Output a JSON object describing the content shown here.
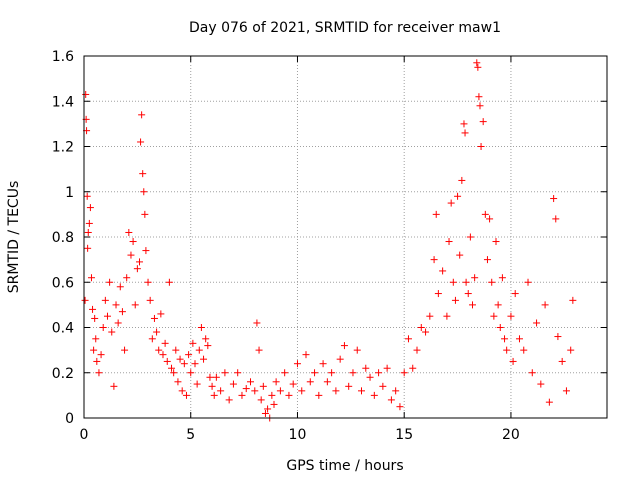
{
  "chart_data": {
    "type": "scatter",
    "title": "Day 076 of 2021, SRMTID for receiver maw1",
    "xlabel": "GPS time / hours",
    "ylabel": "SRMTID / TECUs",
    "xlim": [
      0,
      24.5
    ],
    "ylim": [
      0,
      1.6
    ],
    "grid": true,
    "marker": "+",
    "marker_color": "#ff0000",
    "x_ticks": [
      0,
      5,
      10,
      15,
      20
    ],
    "x_tick_labels": [
      "0",
      "5",
      "10",
      "15",
      "20"
    ],
    "y_ticks": [
      0,
      0.2,
      0.4,
      0.6,
      0.8,
      1.0,
      1.2,
      1.4,
      1.6
    ],
    "y_tick_labels": [
      "0",
      "0.2",
      "0.4",
      "0.6",
      "0.8",
      "1",
      "1.2",
      "1.4",
      "1.6"
    ],
    "series": [
      {
        "name": "SRMTID",
        "points": [
          [
            0.05,
            0.52
          ],
          [
            0.08,
            1.43
          ],
          [
            0.1,
            1.32
          ],
          [
            0.12,
            1.27
          ],
          [
            0.15,
            0.98
          ],
          [
            0.17,
            0.75
          ],
          [
            0.2,
            0.82
          ],
          [
            0.25,
            0.86
          ],
          [
            0.3,
            0.93
          ],
          [
            0.35,
            0.62
          ],
          [
            0.4,
            0.48
          ],
          [
            0.45,
            0.3
          ],
          [
            0.5,
            0.44
          ],
          [
            0.55,
            0.35
          ],
          [
            0.6,
            0.25
          ],
          [
            0.7,
            0.2
          ],
          [
            0.8,
            0.28
          ],
          [
            0.9,
            0.4
          ],
          [
            1.0,
            0.52
          ],
          [
            1.1,
            0.45
          ],
          [
            1.2,
            0.6
          ],
          [
            1.3,
            0.38
          ],
          [
            1.4,
            0.14
          ],
          [
            1.5,
            0.5
          ],
          [
            1.6,
            0.42
          ],
          [
            1.7,
            0.58
          ],
          [
            1.8,
            0.47
          ],
          [
            1.9,
            0.3
          ],
          [
            2.0,
            0.62
          ],
          [
            2.1,
            0.82
          ],
          [
            2.2,
            0.72
          ],
          [
            2.3,
            0.78
          ],
          [
            2.4,
            0.5
          ],
          [
            2.5,
            0.66
          ],
          [
            2.6,
            0.69
          ],
          [
            2.65,
            1.22
          ],
          [
            2.7,
            1.34
          ],
          [
            2.75,
            1.08
          ],
          [
            2.8,
            1.0
          ],
          [
            2.85,
            0.9
          ],
          [
            2.9,
            0.74
          ],
          [
            3.0,
            0.6
          ],
          [
            3.1,
            0.52
          ],
          [
            3.2,
            0.35
          ],
          [
            3.3,
            0.44
          ],
          [
            3.4,
            0.38
          ],
          [
            3.5,
            0.3
          ],
          [
            3.6,
            0.46
          ],
          [
            3.7,
            0.28
          ],
          [
            3.8,
            0.33
          ],
          [
            3.9,
            0.25
          ],
          [
            4.0,
            0.6
          ],
          [
            4.1,
            0.22
          ],
          [
            4.2,
            0.2
          ],
          [
            4.3,
            0.3
          ],
          [
            4.4,
            0.16
          ],
          [
            4.5,
            0.26
          ],
          [
            4.6,
            0.12
          ],
          [
            4.7,
            0.24
          ],
          [
            4.8,
            0.1
          ],
          [
            4.9,
            0.28
          ],
          [
            5.0,
            0.2
          ],
          [
            5.1,
            0.33
          ],
          [
            5.2,
            0.24
          ],
          [
            5.3,
            0.15
          ],
          [
            5.4,
            0.3
          ],
          [
            5.5,
            0.4
          ],
          [
            5.6,
            0.26
          ],
          [
            5.7,
            0.35
          ],
          [
            5.8,
            0.32
          ],
          [
            5.9,
            0.18
          ],
          [
            6.0,
            0.14
          ],
          [
            6.1,
            0.1
          ],
          [
            6.2,
            0.18
          ],
          [
            6.4,
            0.12
          ],
          [
            6.6,
            0.2
          ],
          [
            6.8,
            0.08
          ],
          [
            7.0,
            0.15
          ],
          [
            7.2,
            0.2
          ],
          [
            7.4,
            0.1
          ],
          [
            7.6,
            0.13
          ],
          [
            7.8,
            0.16
          ],
          [
            8.0,
            0.12
          ],
          [
            8.1,
            0.42
          ],
          [
            8.2,
            0.3
          ],
          [
            8.3,
            0.08
          ],
          [
            8.4,
            0.14
          ],
          [
            8.5,
            0.02
          ],
          [
            8.6,
            0.04
          ],
          [
            8.7,
            0.0
          ],
          [
            8.8,
            0.1
          ],
          [
            8.9,
            0.06
          ],
          [
            9.0,
            0.16
          ],
          [
            9.2,
            0.12
          ],
          [
            9.4,
            0.2
          ],
          [
            9.6,
            0.1
          ],
          [
            9.8,
            0.15
          ],
          [
            10.0,
            0.24
          ],
          [
            10.2,
            0.12
          ],
          [
            10.4,
            0.28
          ],
          [
            10.6,
            0.16
          ],
          [
            10.8,
            0.2
          ],
          [
            11.0,
            0.1
          ],
          [
            11.2,
            0.24
          ],
          [
            11.4,
            0.16
          ],
          [
            11.6,
            0.2
          ],
          [
            11.8,
            0.12
          ],
          [
            12.0,
            0.26
          ],
          [
            12.2,
            0.32
          ],
          [
            12.4,
            0.14
          ],
          [
            12.6,
            0.2
          ],
          [
            12.8,
            0.3
          ],
          [
            13.0,
            0.12
          ],
          [
            13.2,
            0.22
          ],
          [
            13.4,
            0.18
          ],
          [
            13.6,
            0.1
          ],
          [
            13.8,
            0.2
          ],
          [
            14.0,
            0.14
          ],
          [
            14.2,
            0.22
          ],
          [
            14.4,
            0.08
          ],
          [
            14.6,
            0.12
          ],
          [
            14.8,
            0.05
          ],
          [
            15.0,
            0.2
          ],
          [
            15.2,
            0.35
          ],
          [
            15.4,
            0.22
          ],
          [
            15.6,
            0.3
          ],
          [
            15.8,
            0.4
          ],
          [
            16.0,
            0.38
          ],
          [
            16.2,
            0.45
          ],
          [
            16.4,
            0.7
          ],
          [
            16.5,
            0.9
          ],
          [
            16.6,
            0.55
          ],
          [
            16.8,
            0.65
          ],
          [
            17.0,
            0.45
          ],
          [
            17.1,
            0.78
          ],
          [
            17.2,
            0.95
          ],
          [
            17.3,
            0.6
          ],
          [
            17.4,
            0.52
          ],
          [
            17.5,
            0.98
          ],
          [
            17.6,
            0.72
          ],
          [
            17.7,
            1.05
          ],
          [
            17.8,
            1.3
          ],
          [
            17.85,
            1.26
          ],
          [
            17.9,
            0.6
          ],
          [
            18.0,
            0.55
          ],
          [
            18.1,
            0.8
          ],
          [
            18.2,
            0.5
          ],
          [
            18.3,
            0.62
          ],
          [
            18.4,
            1.57
          ],
          [
            18.45,
            1.55
          ],
          [
            18.5,
            1.42
          ],
          [
            18.55,
            1.38
          ],
          [
            18.6,
            1.2
          ],
          [
            18.7,
            1.31
          ],
          [
            18.8,
            0.9
          ],
          [
            18.9,
            0.7
          ],
          [
            19.0,
            0.88
          ],
          [
            19.1,
            0.6
          ],
          [
            19.2,
            0.45
          ],
          [
            19.3,
            0.78
          ],
          [
            19.4,
            0.5
          ],
          [
            19.5,
            0.4
          ],
          [
            19.6,
            0.62
          ],
          [
            19.7,
            0.35
          ],
          [
            19.8,
            0.3
          ],
          [
            20.0,
            0.45
          ],
          [
            20.1,
            0.25
          ],
          [
            20.2,
            0.55
          ],
          [
            20.4,
            0.35
          ],
          [
            20.6,
            0.3
          ],
          [
            20.8,
            0.6
          ],
          [
            21.0,
            0.2
          ],
          [
            21.2,
            0.42
          ],
          [
            21.4,
            0.15
          ],
          [
            21.6,
            0.5
          ],
          [
            21.8,
            0.07
          ],
          [
            22.0,
            0.97
          ],
          [
            22.1,
            0.88
          ],
          [
            22.2,
            0.36
          ],
          [
            22.4,
            0.25
          ],
          [
            22.6,
            0.12
          ],
          [
            22.8,
            0.3
          ],
          [
            22.9,
            0.52
          ]
        ]
      }
    ]
  }
}
